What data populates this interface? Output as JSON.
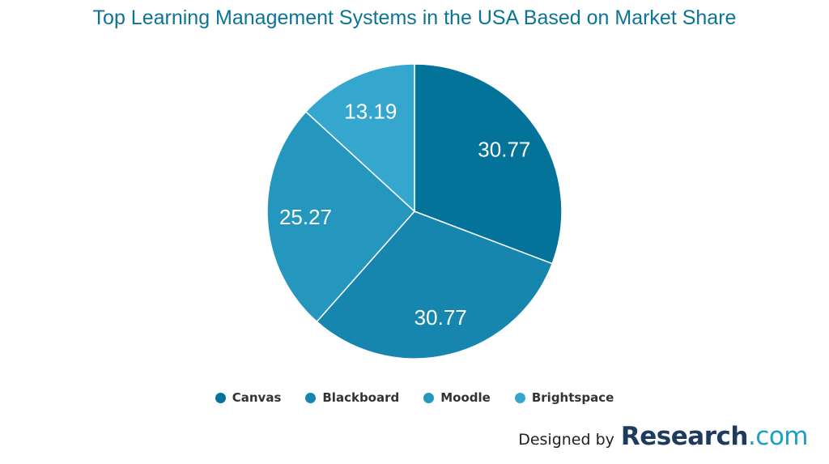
{
  "chart_data": {
    "type": "pie",
    "title": "Top Learning Management Systems in the USA Based on Market Share",
    "slices": [
      {
        "name": "Canvas",
        "value": 30.77,
        "label": "30.77",
        "color": "#03739a"
      },
      {
        "name": "Blackboard",
        "value": 30.77,
        "label": "30.77",
        "color": "#1686ae"
      },
      {
        "name": "Moodle",
        "value": 25.27,
        "label": "25.27",
        "color": "#2596be"
      },
      {
        "name": "Brightspace",
        "value": 13.19,
        "label": "13.19",
        "color": "#35a7cf"
      }
    ],
    "legend_placement": "bottom"
  },
  "credit": {
    "prefix": "Designed by",
    "brand": "Research",
    "brand_suffix": ".com"
  }
}
